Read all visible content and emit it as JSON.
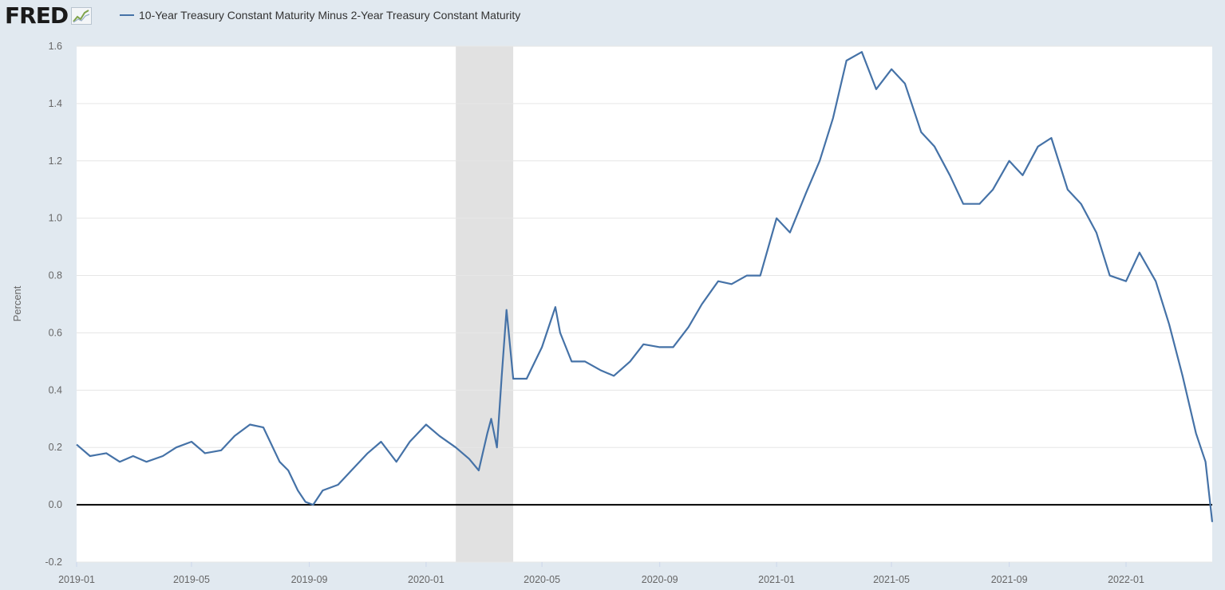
{
  "header": {
    "logo_text": "FRED",
    "logo_icon": "trend-graph-icon"
  },
  "colors": {
    "series": "#4572a7",
    "page_background": "#e1e9f0",
    "plot_background": "#ffffff",
    "recession_band": "#e1e1e1",
    "zero_line": "#000000",
    "gridline": "#e6e6e6"
  },
  "chart_data": {
    "type": "line",
    "title": "",
    "xlabel": "",
    "ylabel": "Percent",
    "ylim": [
      -0.2,
      1.6
    ],
    "yticks": [
      -0.2,
      0.0,
      0.2,
      0.4,
      0.6,
      0.8,
      1.0,
      1.2,
      1.4,
      1.6
    ],
    "ytick_labels": [
      "-0.2",
      "0.0",
      "0.2",
      "0.4",
      "0.6",
      "0.8",
      "1.0",
      "1.2",
      "1.4",
      "1.6"
    ],
    "xlim": [
      "2019-01-01",
      "2022-04-01"
    ],
    "xtick_labels": [
      "2019-01",
      "2019-05",
      "2019-09",
      "2020-01",
      "2020-05",
      "2020-09",
      "2021-01",
      "2021-05",
      "2021-09",
      "2022-01"
    ],
    "legend": "top-left",
    "grid": true,
    "reference_line": 0.0,
    "recession": {
      "start": "2020-02-01",
      "end": "2020-04-01"
    },
    "series": [
      {
        "name": "10-Year Treasury Constant Maturity Minus 2-Year Treasury Constant Maturity",
        "x": [
          "2019-01-01",
          "2019-01-15",
          "2019-02-01",
          "2019-02-15",
          "2019-03-01",
          "2019-03-15",
          "2019-04-01",
          "2019-04-15",
          "2019-05-01",
          "2019-05-15",
          "2019-06-01",
          "2019-06-15",
          "2019-07-01",
          "2019-07-15",
          "2019-08-01",
          "2019-08-10",
          "2019-08-20",
          "2019-08-28",
          "2019-09-05",
          "2019-09-15",
          "2019-10-01",
          "2019-10-15",
          "2019-11-01",
          "2019-11-15",
          "2019-12-01",
          "2019-12-15",
          "2020-01-01",
          "2020-01-15",
          "2020-02-01",
          "2020-02-15",
          "2020-02-25",
          "2020-03-05",
          "2020-03-09",
          "2020-03-15",
          "2020-03-20",
          "2020-03-25",
          "2020-04-01",
          "2020-04-15",
          "2020-05-01",
          "2020-05-15",
          "2020-05-20",
          "2020-06-01",
          "2020-06-15",
          "2020-07-01",
          "2020-07-15",
          "2020-08-01",
          "2020-08-15",
          "2020-09-01",
          "2020-09-15",
          "2020-10-01",
          "2020-10-15",
          "2020-11-01",
          "2020-11-15",
          "2020-12-01",
          "2020-12-15",
          "2021-01-01",
          "2021-01-15",
          "2021-02-01",
          "2021-02-15",
          "2021-03-01",
          "2021-03-15",
          "2021-03-31",
          "2021-04-15",
          "2021-05-01",
          "2021-05-15",
          "2021-06-01",
          "2021-06-15",
          "2021-07-01",
          "2021-07-15",
          "2021-08-01",
          "2021-08-15",
          "2021-09-01",
          "2021-09-15",
          "2021-10-01",
          "2021-10-15",
          "2021-11-01",
          "2021-11-15",
          "2021-12-01",
          "2021-12-15",
          "2022-01-01",
          "2022-01-15",
          "2022-02-01",
          "2022-02-15",
          "2022-03-01",
          "2022-03-15",
          "2022-03-25",
          "2022-04-01"
        ],
        "values": [
          0.21,
          0.17,
          0.18,
          0.15,
          0.17,
          0.15,
          0.17,
          0.2,
          0.22,
          0.18,
          0.19,
          0.24,
          0.28,
          0.27,
          0.15,
          0.12,
          0.05,
          0.01,
          0.0,
          0.05,
          0.07,
          0.12,
          0.18,
          0.22,
          0.15,
          0.22,
          0.28,
          0.24,
          0.2,
          0.16,
          0.12,
          0.25,
          0.3,
          0.2,
          0.45,
          0.68,
          0.44,
          0.44,
          0.55,
          0.69,
          0.6,
          0.5,
          0.5,
          0.47,
          0.45,
          0.5,
          0.56,
          0.55,
          0.55,
          0.62,
          0.7,
          0.78,
          0.77,
          0.8,
          0.8,
          1.0,
          0.95,
          1.09,
          1.2,
          1.35,
          1.55,
          1.58,
          1.45,
          1.52,
          1.47,
          1.3,
          1.25,
          1.15,
          1.05,
          1.05,
          1.1,
          1.2,
          1.15,
          1.25,
          1.28,
          1.1,
          1.05,
          0.95,
          0.8,
          0.78,
          0.88,
          0.78,
          0.63,
          0.45,
          0.25,
          0.15,
          -0.06
        ]
      }
    ]
  }
}
